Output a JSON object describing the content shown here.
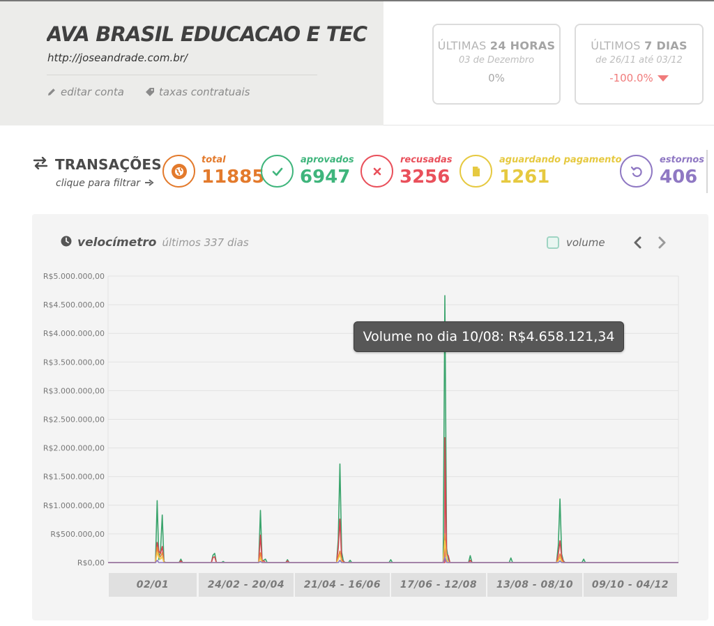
{
  "account": {
    "name": "AVA BRASIL EDUCACAO E TECN...",
    "url": "http://joseandrade.com.br/",
    "edit_label": "editar conta",
    "fees_label": "taxas contratuais"
  },
  "stats": {
    "last24": {
      "title_prefix": "ÚLTIMAS",
      "title_bold": "24 HORAS",
      "subtitle": "03 de Dezembro",
      "value": "0%"
    },
    "last7": {
      "title_prefix": "ÚLTIMOS",
      "title_bold": "7 DIAS",
      "subtitle": "de 26/11 até 03/12",
      "value": "-100.0%"
    }
  },
  "transactions": {
    "title": "TRANSAÇÕES",
    "filter_hint": "clique para filtrar",
    "items": [
      {
        "label": "total",
        "value": "11885",
        "icon": "globe-icon",
        "color": "#e37a2c"
      },
      {
        "label": "aprovados",
        "value": "6947",
        "icon": "check-icon",
        "color": "#3fb57c"
      },
      {
        "label": "recusadas",
        "value": "3256",
        "icon": "x-icon",
        "color": "#e9505b"
      },
      {
        "label": "aguardando pagamento",
        "value": "1261",
        "icon": "document-icon",
        "color": "#e6c940"
      },
      {
        "label": "estornos",
        "value": "406",
        "icon": "undo-icon",
        "color": "#8f78c3"
      }
    ]
  },
  "panel": {
    "title": "velocímetro",
    "subtitle": "últimos 337 dias",
    "legend_label": "volume",
    "tooltip": "Volume no dia 10/08: R$4.658.121,34",
    "ranges": [
      "02/01",
      "24/02 - 20/04",
      "21/04 - 16/06",
      "17/06 - 12/08",
      "13/08 - 08/10",
      "09/10 - 04/12"
    ]
  },
  "chart_data": {
    "type": "line",
    "title": "",
    "xlabel": "",
    "ylabel": "",
    "ylim": [
      0,
      5000000
    ],
    "y_ticks": [
      "R$0,00",
      "R$500.000,00",
      "R$1.000.000,00",
      "R$1.500.000,00",
      "R$2.000.000,00",
      "R$2.500.000,00",
      "R$3.000.000,00",
      "R$3.500.000,00",
      "R$4.000.000,00",
      "R$4.500.000,00",
      "R$5.000.000,00"
    ],
    "x_domain": [
      0,
      337
    ],
    "colors": {
      "total": "#3aa46c",
      "recusadas": "#d64550",
      "aguardando": "#f2c94c",
      "laranja": "#e98a3a",
      "estornos": "#8f78c3"
    },
    "series": [
      {
        "color_key": "total",
        "points": [
          [
            0,
            0
          ],
          [
            28,
            0
          ],
          [
            29,
            1080000
          ],
          [
            30,
            50000
          ],
          [
            31,
            200000
          ],
          [
            32,
            830000
          ],
          [
            33,
            20000
          ],
          [
            34,
            0
          ],
          [
            42,
            0
          ],
          [
            43,
            60000
          ],
          [
            44,
            0
          ],
          [
            61,
            0
          ],
          [
            62,
            130000
          ],
          [
            63,
            160000
          ],
          [
            64,
            0
          ],
          [
            67,
            0
          ],
          [
            68,
            20000
          ],
          [
            69,
            0
          ],
          [
            89,
            0
          ],
          [
            90,
            910000
          ],
          [
            91,
            30000
          ],
          [
            92,
            40000
          ],
          [
            93,
            60000
          ],
          [
            94,
            0
          ],
          [
            105,
            0
          ],
          [
            106,
            50000
          ],
          [
            107,
            0
          ],
          [
            135,
            0
          ],
          [
            136,
            400000
          ],
          [
            137,
            1720000
          ],
          [
            138,
            180000
          ],
          [
            139,
            30000
          ],
          [
            140,
            0
          ],
          [
            142,
            0
          ],
          [
            143,
            40000
          ],
          [
            144,
            0
          ],
          [
            166,
            0
          ],
          [
            167,
            50000
          ],
          [
            168,
            0
          ],
          [
            198,
            0
          ],
          [
            199,
            4658121
          ],
          [
            200,
            250000
          ],
          [
            201,
            60000
          ],
          [
            202,
            0
          ],
          [
            213,
            0
          ],
          [
            214,
            120000
          ],
          [
            215,
            0
          ],
          [
            237,
            0
          ],
          [
            238,
            80000
          ],
          [
            239,
            0
          ],
          [
            265,
            0
          ],
          [
            266,
            300000
          ],
          [
            267,
            1110000
          ],
          [
            268,
            150000
          ],
          [
            269,
            30000
          ],
          [
            270,
            0
          ],
          [
            280,
            0
          ],
          [
            281,
            60000
          ],
          [
            282,
            0
          ],
          [
            337,
            0
          ]
        ]
      },
      {
        "color_key": "recusadas",
        "points": [
          [
            0,
            0
          ],
          [
            28,
            0
          ],
          [
            29,
            350000
          ],
          [
            30,
            200000
          ],
          [
            31,
            160000
          ],
          [
            32,
            280000
          ],
          [
            33,
            10000
          ],
          [
            34,
            0
          ],
          [
            42,
            0
          ],
          [
            43,
            30000
          ],
          [
            44,
            0
          ],
          [
            61,
            0
          ],
          [
            62,
            90000
          ],
          [
            63,
            100000
          ],
          [
            64,
            0
          ],
          [
            89,
            0
          ],
          [
            90,
            480000
          ],
          [
            91,
            20000
          ],
          [
            92,
            30000
          ],
          [
            93,
            0
          ],
          [
            105,
            0
          ],
          [
            106,
            30000
          ],
          [
            107,
            0
          ],
          [
            135,
            0
          ],
          [
            136,
            250000
          ],
          [
            137,
            760000
          ],
          [
            138,
            60000
          ],
          [
            139,
            20000
          ],
          [
            140,
            0
          ],
          [
            199,
            0
          ],
          [
            198,
            0
          ],
          [
            199,
            2180000
          ],
          [
            200,
            150000
          ],
          [
            201,
            120000
          ],
          [
            202,
            0
          ],
          [
            213,
            0
          ],
          [
            214,
            40000
          ],
          [
            215,
            0
          ],
          [
            265,
            0
          ],
          [
            266,
            150000
          ],
          [
            267,
            380000
          ],
          [
            268,
            100000
          ],
          [
            269,
            20000
          ],
          [
            270,
            0
          ],
          [
            337,
            0
          ]
        ]
      },
      {
        "color_key": "laranja",
        "points": [
          [
            0,
            0
          ],
          [
            28,
            0
          ],
          [
            29,
            270000
          ],
          [
            30,
            120000
          ],
          [
            31,
            100000
          ],
          [
            32,
            170000
          ],
          [
            33,
            0
          ],
          [
            89,
            0
          ],
          [
            90,
            170000
          ],
          [
            91,
            0
          ],
          [
            135,
            0
          ],
          [
            136,
            100000
          ],
          [
            137,
            200000
          ],
          [
            138,
            30000
          ],
          [
            139,
            0
          ],
          [
            198,
            0
          ],
          [
            199,
            500000
          ],
          [
            200,
            60000
          ],
          [
            201,
            0
          ],
          [
            265,
            0
          ],
          [
            266,
            50000
          ],
          [
            267,
            150000
          ],
          [
            268,
            40000
          ],
          [
            269,
            0
          ],
          [
            337,
            0
          ]
        ]
      },
      {
        "color_key": "aguardando",
        "points": [
          [
            0,
            0
          ],
          [
            28,
            0
          ],
          [
            29,
            180000
          ],
          [
            30,
            90000
          ],
          [
            31,
            60000
          ],
          [
            32,
            100000
          ],
          [
            33,
            0
          ],
          [
            89,
            0
          ],
          [
            90,
            80000
          ],
          [
            91,
            0
          ],
          [
            135,
            0
          ],
          [
            136,
            60000
          ],
          [
            137,
            140000
          ],
          [
            138,
            20000
          ],
          [
            139,
            0
          ],
          [
            198,
            0
          ],
          [
            199,
            380000
          ],
          [
            200,
            40000
          ],
          [
            201,
            0
          ],
          [
            265,
            0
          ],
          [
            266,
            30000
          ],
          [
            267,
            90000
          ],
          [
            268,
            20000
          ],
          [
            269,
            0
          ],
          [
            337,
            0
          ]
        ]
      },
      {
        "color_key": "estornos",
        "points": [
          [
            0,
            0
          ],
          [
            28,
            0
          ],
          [
            29,
            40000
          ],
          [
            30,
            0
          ],
          [
            89,
            0
          ],
          [
            90,
            20000
          ],
          [
            91,
            0
          ],
          [
            136,
            0
          ],
          [
            137,
            40000
          ],
          [
            138,
            0
          ],
          [
            198,
            0
          ],
          [
            199,
            90000
          ],
          [
            200,
            0
          ],
          [
            266,
            0
          ],
          [
            267,
            30000
          ],
          [
            268,
            0
          ],
          [
            337,
            0
          ]
        ]
      }
    ]
  }
}
